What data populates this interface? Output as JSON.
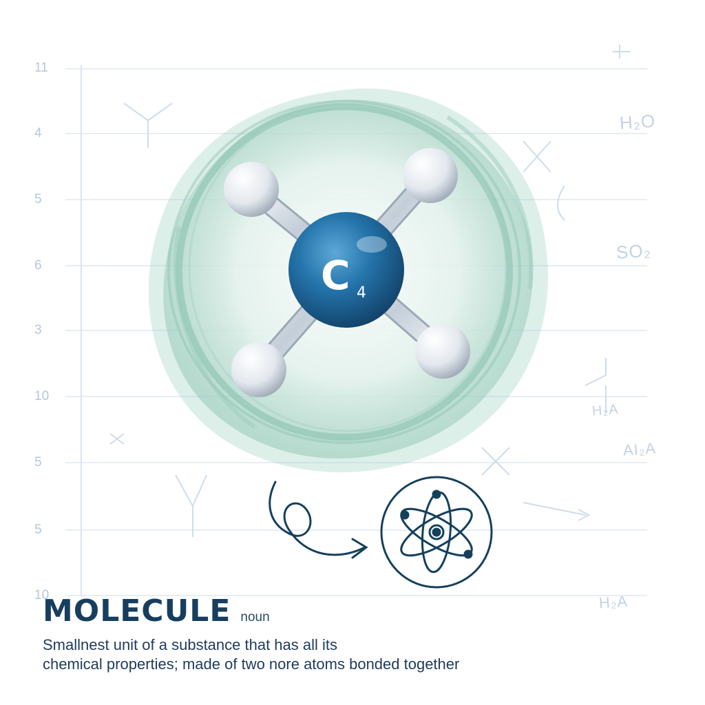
{
  "illustration": {
    "center_atom_label": "C",
    "center_atom_subscript": "4",
    "colors": {
      "center_atom": "#1f6aa0",
      "cloud": "#7fbca8",
      "bonds": "#cfd8df",
      "outer_atoms": "#eef1f4",
      "line_art": "#15405c"
    }
  },
  "notebook": {
    "line_numbers": [
      "11",
      "4",
      "5",
      "6",
      "3",
      "10",
      "5",
      "5",
      "10"
    ],
    "sketch_notes": [
      "H₂O",
      "SO₂",
      "H₂A",
      "AI₂A",
      "H₂A"
    ]
  },
  "entry": {
    "headword": "MOLECULE",
    "part_of_speech": "noun",
    "definition_line_1": "Smallnest unit of a substance that has all its",
    "definition_line_2": "chemical properties; made of two nore atoms bonded together"
  },
  "icons": [
    "atom-icon",
    "curly-arrow-icon"
  ]
}
